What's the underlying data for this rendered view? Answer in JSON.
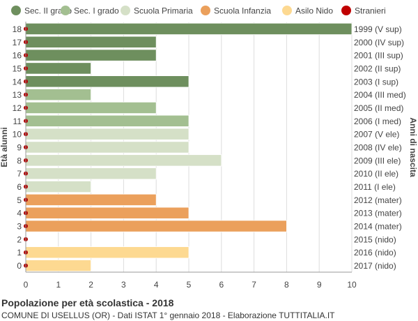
{
  "chart_data": {
    "type": "bar",
    "orientation": "horizontal",
    "title": "Popolazione per età scolastica - 2018",
    "subtitle": "COMUNE DI USELLUS (OR) - Dati ISTAT 1° gennaio 2018 - Elaborazione TUTTITALIA.IT",
    "ylabel_left": "Età alunni",
    "ylabel_right": "Anni di nascita",
    "xlim": [
      0,
      10
    ],
    "x_ticks": [
      0,
      1,
      2,
      3,
      4,
      5,
      6,
      7,
      8,
      9,
      10
    ],
    "grid": true,
    "legend_position": "top",
    "legend": [
      {
        "name": "Sec. II grado",
        "color": "#6e8f5e",
        "marker": "circle"
      },
      {
        "name": "Sec. I grado",
        "color": "#a3bf91",
        "marker": "circle"
      },
      {
        "name": "Scuola Primaria",
        "color": "#d5e0c7",
        "marker": "circle"
      },
      {
        "name": "Scuola Infanzia",
        "color": "#eba05c",
        "marker": "circle"
      },
      {
        "name": "Asilo Nido",
        "color": "#fdd991",
        "marker": "circle"
      },
      {
        "name": "Stranieri",
        "color": "#c00000",
        "marker": "circle"
      }
    ],
    "rows": [
      {
        "age": "18",
        "birth": "1999 (V sup)",
        "value": 10,
        "group": "Sec. II grado"
      },
      {
        "age": "17",
        "birth": "2000 (IV sup)",
        "value": 4,
        "group": "Sec. II grado"
      },
      {
        "age": "16",
        "birth": "2001 (III sup)",
        "value": 4,
        "group": "Sec. II grado"
      },
      {
        "age": "15",
        "birth": "2002 (II sup)",
        "value": 2,
        "group": "Sec. II grado"
      },
      {
        "age": "14",
        "birth": "2003 (I sup)",
        "value": 5,
        "group": "Sec. II grado"
      },
      {
        "age": "13",
        "birth": "2004 (III med)",
        "value": 2,
        "group": "Sec. I grado"
      },
      {
        "age": "12",
        "birth": "2005 (II med)",
        "value": 4,
        "group": "Sec. I grado"
      },
      {
        "age": "11",
        "birth": "2006 (I med)",
        "value": 5,
        "group": "Sec. I grado"
      },
      {
        "age": "10",
        "birth": "2007 (V ele)",
        "value": 5,
        "group": "Scuola Primaria"
      },
      {
        "age": "9",
        "birth": "2008 (IV ele)",
        "value": 5,
        "group": "Scuola Primaria"
      },
      {
        "age": "8",
        "birth": "2009 (III ele)",
        "value": 6,
        "group": "Scuola Primaria"
      },
      {
        "age": "7",
        "birth": "2010 (II ele)",
        "value": 4,
        "group": "Scuola Primaria"
      },
      {
        "age": "6",
        "birth": "2011 (I ele)",
        "value": 2,
        "group": "Scuola Primaria"
      },
      {
        "age": "5",
        "birth": "2012 (mater)",
        "value": 4,
        "group": "Scuola Infanzia"
      },
      {
        "age": "4",
        "birth": "2013 (mater)",
        "value": 5,
        "group": "Scuola Infanzia"
      },
      {
        "age": "3",
        "birth": "2014 (mater)",
        "value": 8,
        "group": "Scuola Infanzia"
      },
      {
        "age": "2",
        "birth": "2015 (nido)",
        "value": 0,
        "group": "Asilo Nido"
      },
      {
        "age": "1",
        "birth": "2016 (nido)",
        "value": 5,
        "group": "Asilo Nido"
      },
      {
        "age": "0",
        "birth": "2017 (nido)",
        "value": 2,
        "group": "Asilo Nido"
      }
    ],
    "stranieri": [
      0,
      0,
      0,
      0,
      0,
      0,
      0,
      0,
      0,
      0,
      0,
      0,
      0,
      0,
      0,
      0,
      0,
      0,
      0
    ]
  }
}
